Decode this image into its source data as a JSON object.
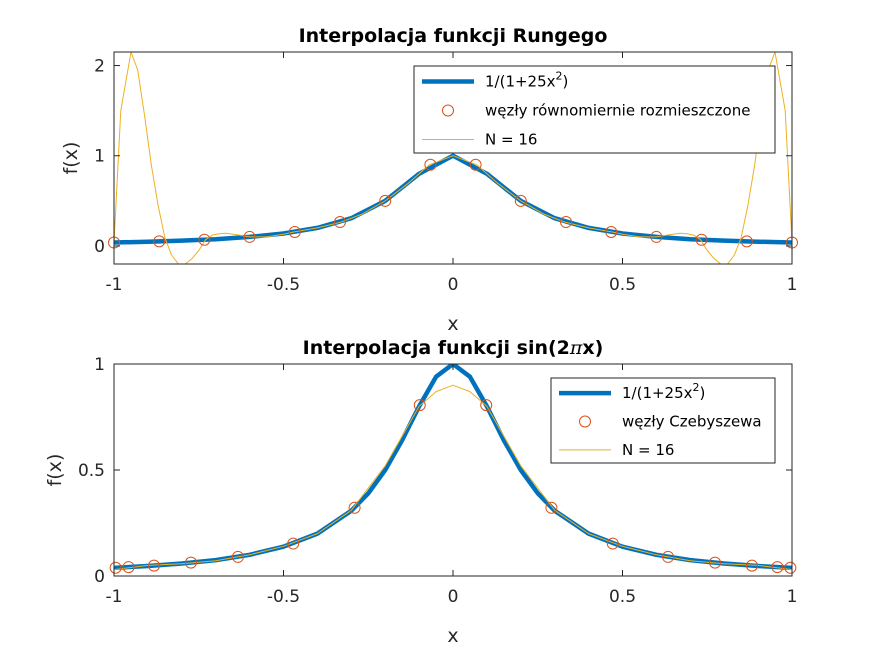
{
  "chart_data": [
    {
      "type": "line",
      "title_parts": [
        "Interpolacja funkcji Rungego"
      ],
      "xlabel": "x",
      "ylabel": "f(x)",
      "xlim": [
        -1,
        1
      ],
      "ylim": [
        -0.2,
        2.15
      ],
      "xticks": [
        -1,
        -0.5,
        0,
        0.5,
        1
      ],
      "xtick_labels": [
        "-1",
        "-0.5",
        "0",
        "0.5",
        "1"
      ],
      "yticks": [
        0,
        1,
        2
      ],
      "ytick_labels": [
        "0",
        "1",
        "2"
      ],
      "legend": {
        "position": "top-right",
        "entries": [
          {
            "label_main": "1/(1+25x",
            "label_sup": "2",
            "label_end": ")"
          },
          {
            "label_main": "węzły równomiernie rozmieszczone"
          },
          {
            "label_main": "N = 16"
          }
        ]
      },
      "series": [
        {
          "role": "function",
          "color": "#0072BD",
          "x": [
            -1,
            -0.9,
            -0.8,
            -0.7,
            -0.6,
            -0.5,
            -0.4,
            -0.3,
            -0.2,
            -0.1,
            0,
            0.1,
            0.2,
            0.3,
            0.4,
            0.5,
            0.6,
            0.7,
            0.8,
            0.9,
            1
          ],
          "y": [
            0.038,
            0.047,
            0.059,
            0.075,
            0.1,
            0.138,
            0.2,
            0.308,
            0.5,
            0.8,
            1.0,
            0.8,
            0.5,
            0.308,
            0.2,
            0.138,
            0.1,
            0.075,
            0.059,
            0.047,
            0.038
          ]
        },
        {
          "role": "nodes",
          "color": "#D95319",
          "x": [
            -1,
            -0.8667,
            -0.7333,
            -0.6,
            -0.4667,
            -0.3333,
            -0.2,
            -0.0667,
            0.0667,
            0.2,
            0.3333,
            0.4667,
            0.6,
            0.7333,
            0.8667,
            1
          ],
          "y": [
            0.038,
            0.051,
            0.069,
            0.1,
            0.155,
            0.265,
            0.5,
            0.9,
            0.9,
            0.5,
            0.265,
            0.155,
            0.1,
            0.069,
            0.051,
            0.038
          ]
        },
        {
          "role": "interpolant",
          "color": "#EDB120",
          "x": [
            -1,
            -0.98,
            -0.95,
            -0.93,
            -0.91,
            -0.89,
            -0.87,
            -0.85,
            -0.83,
            -0.81,
            -0.79,
            -0.77,
            -0.75,
            -0.73,
            -0.71,
            -0.69,
            -0.67,
            -0.63,
            -0.6,
            -0.55,
            -0.5,
            -0.47,
            -0.4,
            -0.33,
            -0.27,
            -0.2,
            -0.13,
            -0.07,
            0,
            0.07,
            0.13,
            0.2,
            0.27,
            0.33,
            0.4,
            0.47,
            0.5,
            0.55,
            0.6,
            0.63,
            0.67,
            0.69,
            0.71,
            0.73,
            0.75,
            0.77,
            0.79,
            0.81,
            0.83,
            0.85,
            0.87,
            0.89,
            0.91,
            0.93,
            0.95,
            0.98,
            1
          ],
          "y": [
            0.038,
            1.5,
            2.15,
            1.95,
            1.45,
            0.9,
            0.45,
            0.09,
            -0.1,
            -0.2,
            -0.2,
            -0.14,
            -0.05,
            0.069,
            0.12,
            0.135,
            0.14,
            0.12,
            0.1,
            0.1,
            0.13,
            0.155,
            0.2,
            0.265,
            0.35,
            0.5,
            0.7,
            0.9,
            1.0,
            0.9,
            0.7,
            0.5,
            0.35,
            0.265,
            0.2,
            0.155,
            0.13,
            0.1,
            0.1,
            0.12,
            0.14,
            0.135,
            0.12,
            0.069,
            -0.05,
            -0.14,
            -0.2,
            -0.2,
            -0.1,
            0.09,
            0.45,
            0.9,
            1.45,
            1.95,
            2.15,
            1.5,
            0.038
          ]
        }
      ]
    },
    {
      "type": "line",
      "title_parts": [
        "Interpolacja funkcji sin(2",
        "π",
        "x)"
      ],
      "xlabel": "x",
      "ylabel": "f(x)",
      "xlim": [
        -1,
        1
      ],
      "ylim": [
        0,
        1
      ],
      "xticks": [
        -1,
        -0.5,
        0,
        0.5,
        1
      ],
      "xtick_labels": [
        "-1",
        "-0.5",
        "0",
        "0.5",
        "1"
      ],
      "yticks": [
        0,
        0.5,
        1
      ],
      "ytick_labels": [
        "0",
        "0.5",
        "1"
      ],
      "legend": {
        "position": "top-right",
        "entries": [
          {
            "label_main": "1/(1+25x",
            "label_sup": "2",
            "label_end": ")"
          },
          {
            "label_main": "węzły Czebyszewa"
          },
          {
            "label_main": "N = 16"
          }
        ]
      },
      "series": [
        {
          "role": "function",
          "color": "#0072BD",
          "x": [
            -1,
            -0.9,
            -0.8,
            -0.7,
            -0.6,
            -0.5,
            -0.4,
            -0.3,
            -0.25,
            -0.2,
            -0.15,
            -0.1,
            -0.05,
            0,
            0.05,
            0.1,
            0.15,
            0.2,
            0.25,
            0.3,
            0.4,
            0.5,
            0.6,
            0.7,
            0.8,
            0.9,
            1
          ],
          "y": [
            0.038,
            0.047,
            0.059,
            0.075,
            0.1,
            0.138,
            0.2,
            0.308,
            0.39,
            0.5,
            0.64,
            0.8,
            0.94,
            1.0,
            0.94,
            0.8,
            0.64,
            0.5,
            0.39,
            0.308,
            0.2,
            0.138,
            0.1,
            0.075,
            0.059,
            0.047,
            0.038
          ]
        },
        {
          "role": "nodes",
          "color": "#D95319",
          "x": [
            -0.9952,
            -0.9569,
            -0.8819,
            -0.773,
            -0.6344,
            -0.4714,
            -0.2903,
            -0.098,
            0.098,
            0.2903,
            0.4714,
            0.6344,
            0.773,
            0.8819,
            0.9569,
            0.9952
          ],
          "y": [
            0.039,
            0.042,
            0.049,
            0.063,
            0.09,
            0.153,
            0.322,
            0.806,
            0.806,
            0.322,
            0.153,
            0.09,
            0.063,
            0.049,
            0.042,
            0.039
          ]
        },
        {
          "role": "interpolant",
          "color": "#EDB120",
          "x": [
            -1,
            -0.9,
            -0.8,
            -0.7,
            -0.6,
            -0.5,
            -0.4,
            -0.3,
            -0.2,
            -0.1,
            -0.05,
            0,
            0.05,
            0.1,
            0.2,
            0.3,
            0.4,
            0.5,
            0.6,
            0.7,
            0.8,
            0.9,
            1
          ],
          "y": [
            0.03,
            0.05,
            0.058,
            0.072,
            0.1,
            0.14,
            0.2,
            0.31,
            0.52,
            0.8,
            0.87,
            0.9,
            0.87,
            0.8,
            0.52,
            0.31,
            0.2,
            0.14,
            0.1,
            0.072,
            0.058,
            0.05,
            0.03
          ]
        }
      ]
    }
  ]
}
